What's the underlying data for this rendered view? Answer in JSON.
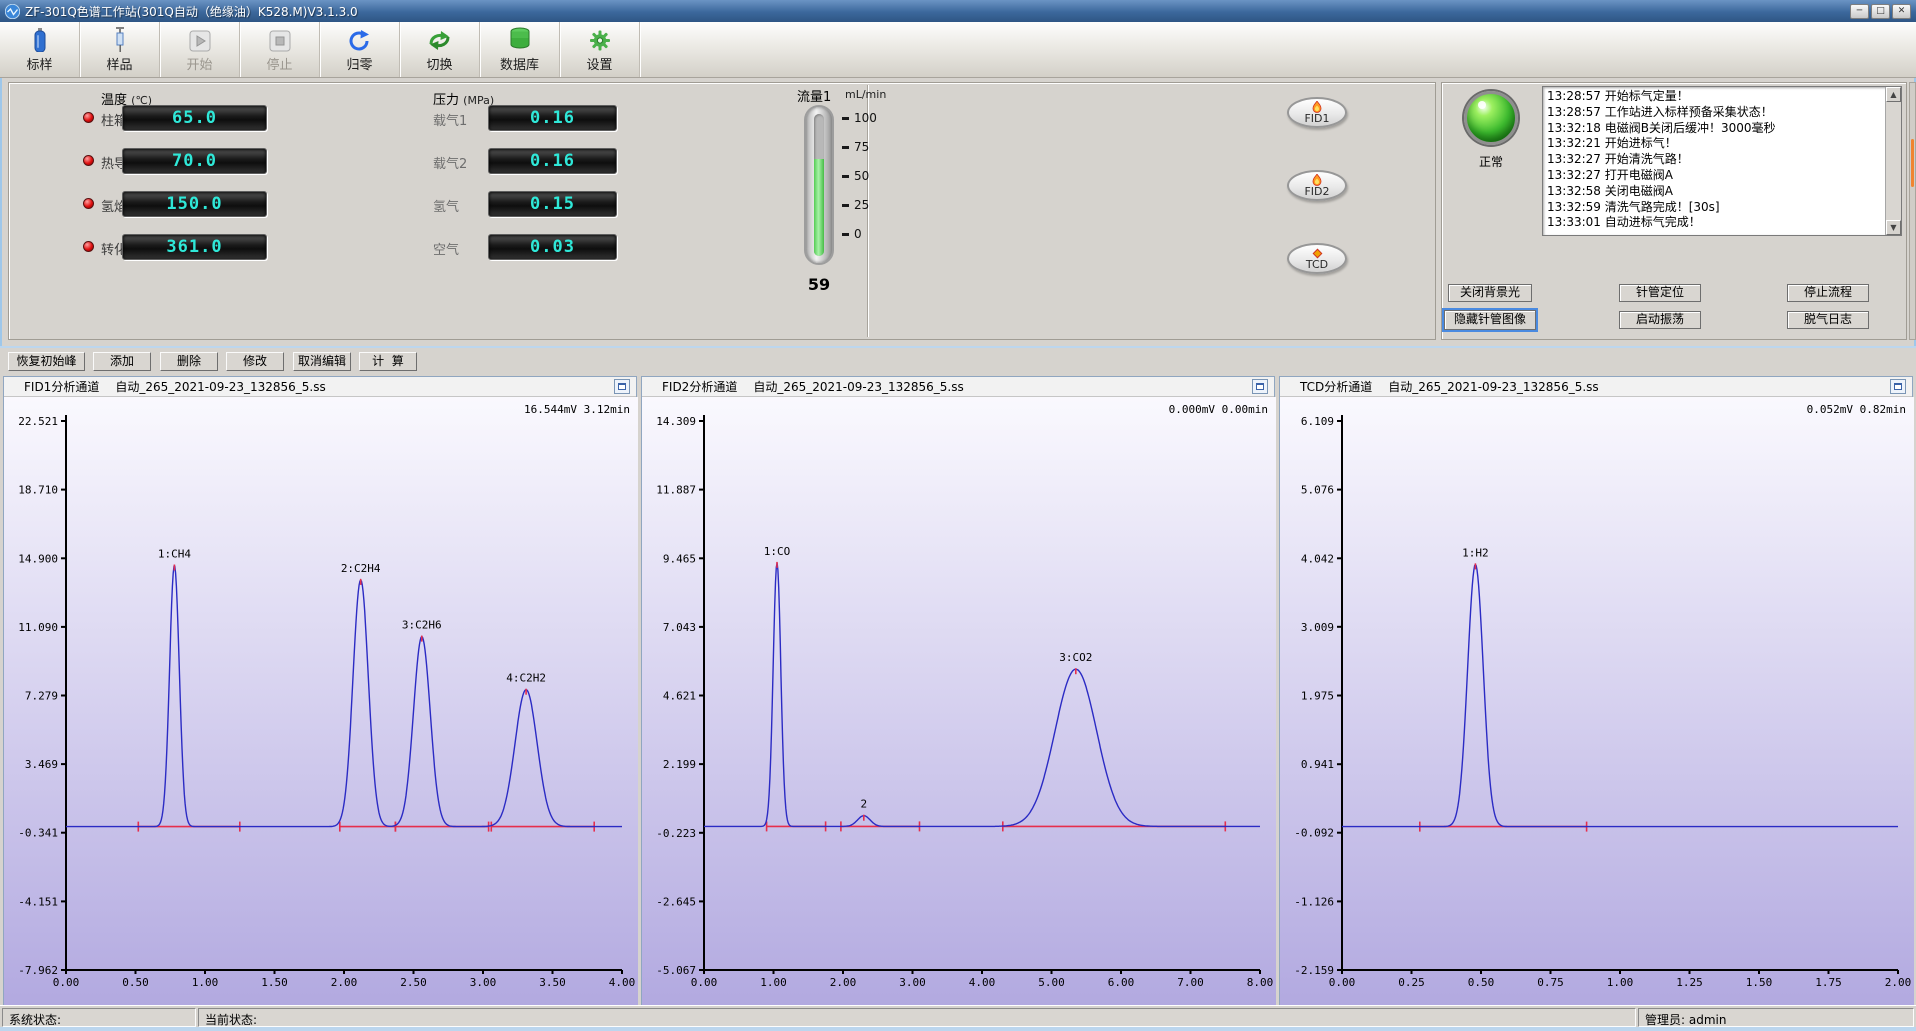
{
  "window": {
    "title": "ZF-301Q色谱工作站(301Q自动（绝缘油）K528.M)V3.1.3.0"
  },
  "toolbar": {
    "items": [
      {
        "label": "标样",
        "disabled": false
      },
      {
        "label": "样品",
        "disabled": false
      },
      {
        "label": "开始",
        "disabled": true
      },
      {
        "label": "停止",
        "disabled": true
      },
      {
        "label": "归零",
        "disabled": false
      },
      {
        "label": "切换",
        "disabled": false
      },
      {
        "label": "数据库",
        "disabled": false
      },
      {
        "label": "设置",
        "disabled": false
      }
    ]
  },
  "temperature": {
    "title": "温度",
    "unit": "(℃)",
    "rows": [
      {
        "label": "柱箱",
        "value": "65.0"
      },
      {
        "label": "热导",
        "value": "70.0"
      },
      {
        "label": "氢焰",
        "value": "150.0"
      },
      {
        "label": "转化",
        "value": "361.0"
      }
    ]
  },
  "pressure": {
    "title": "压力",
    "unit": "(MPa)",
    "rows": [
      {
        "label": "载气1",
        "value": "0.16"
      },
      {
        "label": "载气2",
        "value": "0.16"
      },
      {
        "label": "氢气",
        "value": "0.15"
      },
      {
        "label": "空气",
        "value": "0.03"
      }
    ]
  },
  "flow": {
    "label": "流量1",
    "unit": "mL/min",
    "value": 59,
    "display_value": "59",
    "scale": [
      "100",
      "75",
      "50",
      "25",
      "0"
    ]
  },
  "detectors": [
    {
      "label": "FID1"
    },
    {
      "label": "FID2"
    },
    {
      "label": "TCD"
    }
  ],
  "status_panel": {
    "light_label": "正常",
    "log": [
      "13:28:57 开始标气定量！",
      "13:28:57 工作站进入标样预备采集状态！",
      "13:32:18 电磁阀B关闭后缓冲！3000毫秒",
      "13:32:21 开始进标气！",
      "13:32:27 开始清洗气路！",
      "13:32:27 打开电磁阀A",
      "13:32:58 关闭电磁阀A",
      "13:32:59 清洗气路完成！[30s]",
      "13:33:01 自动进标气完成！"
    ],
    "buttons": [
      {
        "label": "关闭背景光"
      },
      {
        "label": "针管定位"
      },
      {
        "label": "停止流程"
      },
      {
        "label": "隐藏针管图像",
        "focused": true
      },
      {
        "label": "启动振荡"
      },
      {
        "label": "脱气日志"
      }
    ]
  },
  "edit_toolbar": [
    "恢复初始峰",
    "添加",
    "删除",
    "修改",
    "取消编辑",
    "计  算"
  ],
  "status_bar": {
    "system": "系统状态:",
    "current": "当前状态:",
    "admin": "管理员: admin"
  },
  "chart_data": [
    {
      "type": "line",
      "title": "FID1分析通道",
      "file": "自动_265_2021-09-23_132856_5.ss",
      "annotation": "16.544mV 3.12min",
      "xlabel": "min",
      "ylabel": "mV",
      "y_ticks": [
        22.521,
        18.71,
        14.9,
        11.09,
        7.279,
        3.469,
        -0.341,
        -4.151,
        -7.962
      ],
      "x_ticks": [
        0,
        0.5,
        1,
        1.5,
        2,
        2.5,
        3,
        3.5,
        4
      ],
      "x_range": [
        0,
        4
      ],
      "baseline": 0,
      "peaks": [
        {
          "label": "1:CH4",
          "t": 0.78,
          "h": 14.5,
          "sigma": 0.035
        },
        {
          "label": "2:C2H4",
          "t": 2.12,
          "h": 13.7,
          "sigma": 0.055
        },
        {
          "label": "3:C2H6",
          "t": 2.56,
          "h": 10.55,
          "sigma": 0.06
        },
        {
          "label": "4:C2H2",
          "t": 3.31,
          "h": 7.6,
          "sigma": 0.08
        }
      ],
      "baseline_segments": [
        [
          0.52,
          1.25
        ],
        [
          1.97,
          2.37
        ],
        [
          2.37,
          3.04
        ],
        [
          3.06,
          3.8
        ]
      ]
    },
    {
      "type": "line",
      "title": "FID2分析通道",
      "file": "自动_265_2021-09-23_132856_5.ss",
      "annotation": "0.000mV 0.00min",
      "xlabel": "min",
      "ylabel": "mV",
      "y_ticks": [
        14.309,
        11.887,
        9.465,
        7.043,
        4.621,
        2.199,
        -0.223,
        -2.645,
        -5.067
      ],
      "x_ticks": [
        0,
        1,
        2,
        3,
        4,
        5,
        6,
        7,
        8
      ],
      "x_range": [
        0,
        8
      ],
      "baseline": 0,
      "peaks": [
        {
          "label": "1:CO",
          "t": 1.05,
          "h": 9.3,
          "sigma": 0.055
        },
        {
          "label": "2",
          "t": 2.3,
          "h": 0.38,
          "sigma": 0.09
        },
        {
          "label": "3:CO2",
          "t": 5.35,
          "h": 5.55,
          "sigma": 0.3
        }
      ],
      "baseline_segments": [
        [
          0.9,
          1.75
        ],
        [
          1.97,
          3.1
        ],
        [
          4.3,
          7.5
        ]
      ]
    },
    {
      "type": "line",
      "title": "TCD分析通道",
      "file": "自动_265_2021-09-23_132856_5.ss",
      "annotation": "0.052mV 0.82min",
      "xlabel": "min",
      "ylabel": "mV",
      "y_ticks": [
        6.109,
        5.076,
        4.042,
        3.009,
        1.975,
        0.941,
        -0.092,
        -1.126,
        -2.159
      ],
      "x_ticks": [
        0,
        0.25,
        0.5,
        0.75,
        1,
        1.25,
        1.5,
        1.75,
        2
      ],
      "x_range": [
        0,
        2
      ],
      "baseline": 0,
      "peaks": [
        {
          "label": "1:H2",
          "t": 0.48,
          "h": 3.95,
          "sigma": 0.028
        }
      ],
      "baseline_segments": [
        [
          0.28,
          0.88
        ]
      ]
    }
  ]
}
